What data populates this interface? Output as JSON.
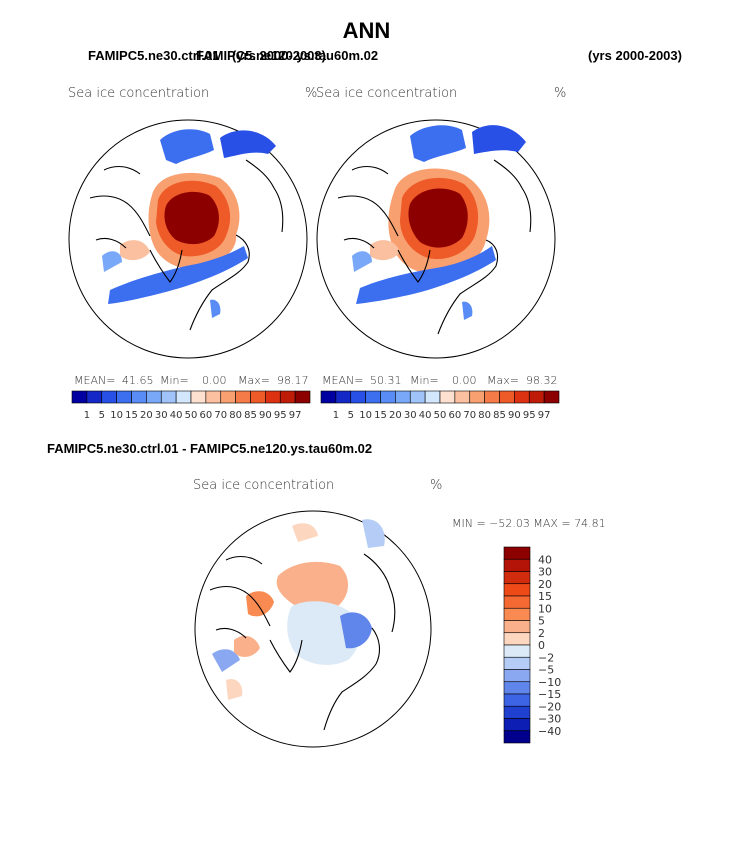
{
  "page": {
    "title": "ANN",
    "case1": "FAMIPC5.ne30.ctrl.01",
    "case1_years": "(yrs 2000-2003)",
    "case2": "FAMIPC5.ne120.ys.tau60m.02",
    "case2_years": "(yrs 2000-2003)",
    "diff_title": "FAMIPC5.ne30.ctrl.01 - FAMIPC5.ne120.ys.tau60m.02"
  },
  "panels": [
    {
      "variable": "Sea ice concentration",
      "units": "%",
      "stats": {
        "mean_label": "MEAN=",
        "mean": "41.65",
        "min_label": "Min=",
        "min": "0.00",
        "max_label": "Max=",
        "max": "98.17"
      }
    },
    {
      "variable": "Sea ice concentration",
      "units": "%",
      "stats": {
        "mean_label": "MEAN=",
        "mean": "50.31",
        "min_label": "Min=",
        "min": "0.00",
        "max_label": "Max=",
        "max": "98.32"
      }
    }
  ],
  "diff_panel": {
    "variable": "Sea ice concentration",
    "units": "%",
    "minmax_text": "MIN = −52.03 MAX =  74.81"
  },
  "chart_data": [
    {
      "type": "heatmap",
      "title": "Sea ice concentration",
      "units": "%",
      "projection": "north polar stereographic",
      "mean": 41.65,
      "min": 0.0,
      "max": 98.17,
      "colorbar": {
        "ticks": [
          "1",
          "5",
          "10",
          "15",
          "20",
          "30",
          "40",
          "50",
          "60",
          "70",
          "80",
          "85",
          "90",
          "95",
          "97"
        ],
        "colors": [
          "#0000a0",
          "#1428c8",
          "#2850e6",
          "#3c6ef0",
          "#5a8cf5",
          "#7aa8f8",
          "#a0c4fa",
          "#d2e6fc",
          "#fde0d0",
          "#fbc0a0",
          "#f8a070",
          "#f57c48",
          "#ee5a28",
          "#dc3212",
          "#be1c08",
          "#8c0000"
        ]
      }
    },
    {
      "type": "heatmap",
      "title": "Sea ice concentration",
      "units": "%",
      "projection": "north polar stereographic",
      "mean": 50.31,
      "min": 0.0,
      "max": 98.32,
      "colorbar": {
        "ticks": [
          "1",
          "5",
          "10",
          "15",
          "20",
          "30",
          "40",
          "50",
          "60",
          "70",
          "80",
          "85",
          "90",
          "95",
          "97"
        ],
        "colors": [
          "#0000a0",
          "#1428c8",
          "#2850e6",
          "#3c6ef0",
          "#5a8cf5",
          "#7aa8f8",
          "#a0c4fa",
          "#d2e6fc",
          "#fde0d0",
          "#fbc0a0",
          "#f8a070",
          "#f57c48",
          "#ee5a28",
          "#dc3212",
          "#be1c08",
          "#8c0000"
        ]
      }
    },
    {
      "type": "heatmap",
      "title": "Sea ice concentration",
      "units": "%",
      "projection": "north polar stereographic",
      "min": -52.03,
      "max": 74.81,
      "colorbar": {
        "labels": [
          "40",
          "30",
          "20",
          "15",
          "10",
          "5",
          "2",
          "0",
          "−2",
          "−5",
          "−10",
          "−15",
          "−20",
          "−30",
          "−40"
        ],
        "colors": [
          "#8c0000",
          "#b41408",
          "#d22c0e",
          "#ee4a18",
          "#f56a32",
          "#f88a52",
          "#fab08a",
          "#fdd6c0",
          "#dceaf8",
          "#b4ccf6",
          "#8aa8f2",
          "#6086ec",
          "#3c64e4",
          "#2040d0",
          "#0c1eb4",
          "#00008c"
        ]
      }
    }
  ]
}
